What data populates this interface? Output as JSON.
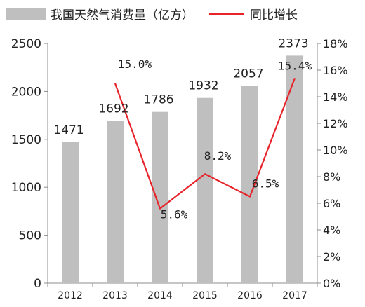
{
  "chart_data": {
    "type": "bar",
    "categories": [
      "2012",
      "2013",
      "2014",
      "2015",
      "2016",
      "2017"
    ],
    "series": [
      {
        "name": "我国天然气消费量（亿方）",
        "type": "bar",
        "axis": "left",
        "color": "#bfbfbf",
        "values": [
          1471,
          1692,
          1786,
          1932,
          2057,
          2373
        ],
        "labels": [
          "1471",
          "1692",
          "1786",
          "1932",
          "2057",
          "2373"
        ]
      },
      {
        "name": "同比增长",
        "type": "line",
        "axis": "right",
        "color": "#e8232a",
        "values": [
          null,
          15.0,
          5.6,
          8.2,
          6.5,
          15.4
        ],
        "labels": [
          "",
          "15.0%",
          "5.6%",
          "8.2%",
          "6.5%",
          "15.4%"
        ]
      }
    ],
    "y_left": {
      "ylim": [
        0,
        2500
      ],
      "ticks": [
        "0",
        "500",
        "1000",
        "1500",
        "2000",
        "2500"
      ]
    },
    "y_right": {
      "ylim": [
        0,
        18
      ],
      "ticks": [
        "0%",
        "2%",
        "4%",
        "6%",
        "8%",
        "10%",
        "12%",
        "14%",
        "16%",
        "18%"
      ]
    },
    "title": "",
    "xlabel": "",
    "ylabel": "",
    "legend_position": "top",
    "grid": false
  }
}
